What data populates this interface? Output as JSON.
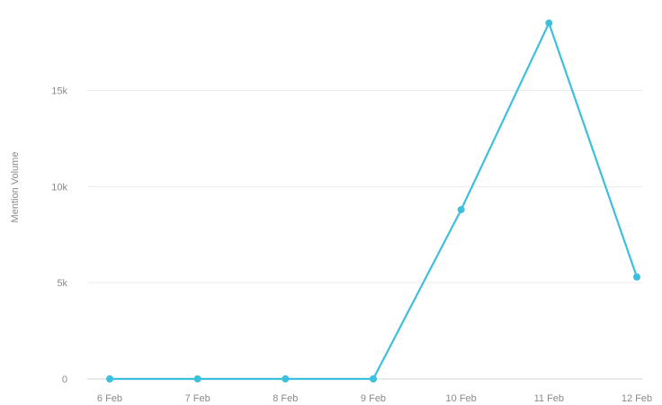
{
  "chart_data": {
    "type": "line",
    "title": "",
    "xlabel": "",
    "ylabel": "Mention Volume",
    "categories": [
      "6 Feb",
      "7 Feb",
      "8 Feb",
      "9 Feb",
      "10 Feb",
      "11 Feb",
      "12 Feb"
    ],
    "series": [
      {
        "values": [
          0,
          0,
          0,
          0,
          8800,
          18500,
          5300
        ]
      }
    ],
    "yticks": [
      0,
      5000,
      10000,
      15000
    ],
    "ytick_labels": [
      "0",
      "5k",
      "10k",
      "15k"
    ],
    "ylim": [
      0,
      19000
    ],
    "grid": "horizontal",
    "legend": "none",
    "color": "#3cc0dc"
  }
}
